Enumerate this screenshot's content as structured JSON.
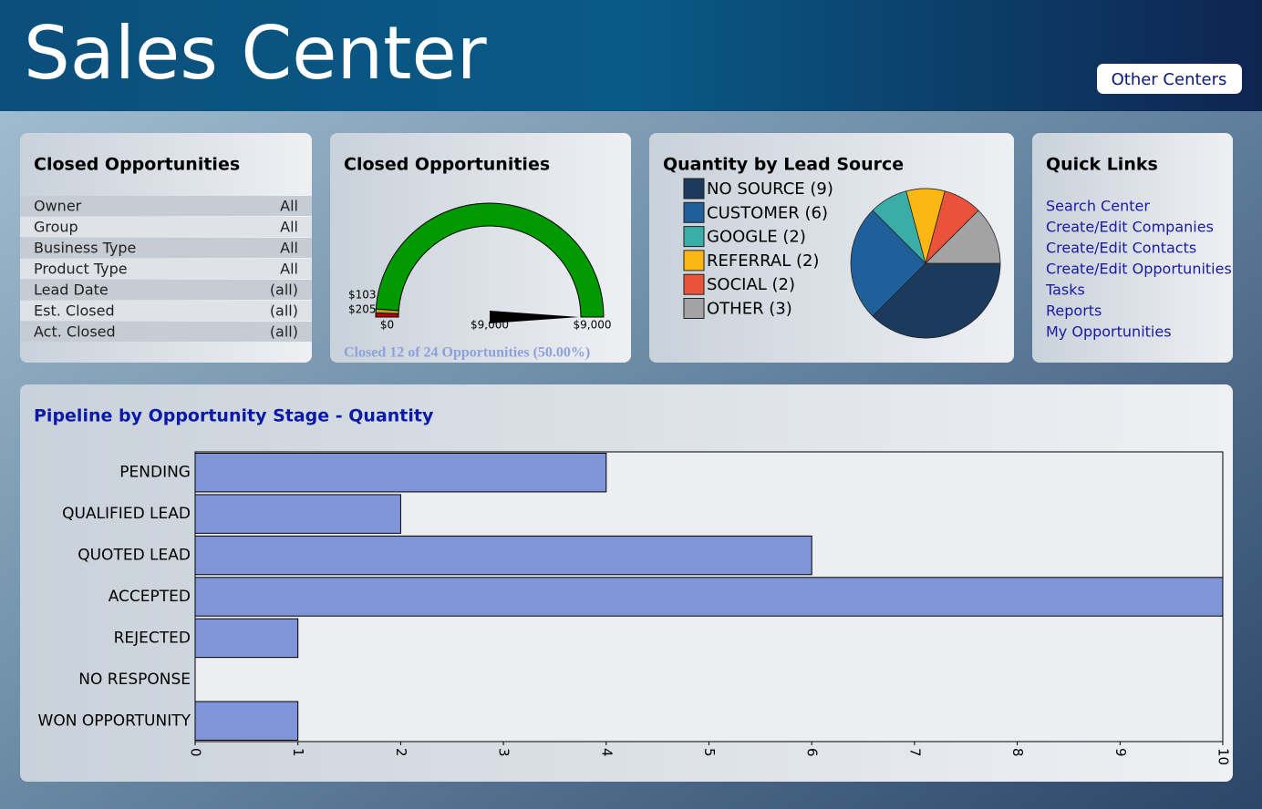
{
  "header": {
    "title": "Sales Center",
    "button": "Other Centers"
  },
  "filters": {
    "title": "Closed Opportunities",
    "rows": [
      [
        "Owner",
        "All"
      ],
      [
        "Group",
        "All"
      ],
      [
        "Business Type",
        "All"
      ],
      [
        "Product Type",
        "All"
      ],
      [
        "Lead Date",
        "(all)"
      ],
      [
        "Est. Closed",
        "(all)"
      ],
      [
        "Act. Closed",
        "(all)"
      ]
    ]
  },
  "quick_links": {
    "title": "Quick Links",
    "links": [
      "Search Center",
      "Create/Edit Companies",
      "Create/Edit Contacts",
      "Create/Edit Opportunities",
      "Tasks",
      "Reports",
      "My Opportunities"
    ]
  },
  "chart_data": [
    {
      "type": "gauge",
      "title": "Closed Opportunities",
      "ylim": [
        0,
        9000
      ],
      "yticks": [
        {
          "value": 0,
          "label": "$0"
        },
        {
          "value": 103,
          "label": "$103"
        },
        {
          "value": 205,
          "label": "$205"
        },
        {
          "value": 9000,
          "label": "$9,000"
        }
      ],
      "band_colors": [
        "#c00000",
        "#b8a020",
        "#009900"
      ],
      "value": 9000,
      "value_label": "$9,000",
      "footer": "Closed 12 of 24 Opportunities (50.00%)"
    },
    {
      "type": "pie",
      "title": "Quantity by Lead Source",
      "categories": [
        "NO SOURCE (9)",
        "CUSTOMER (6)",
        "GOOGLE (2)",
        "REFERRAL (2)",
        "SOCIAL (2)",
        "OTHER (3)"
      ],
      "values": [
        9,
        6,
        2,
        2,
        2,
        3
      ],
      "colors": [
        "#1b3a5c",
        "#1f5f9a",
        "#3aada8",
        "#fbb714",
        "#ea533a",
        "#a3a3a3"
      ]
    },
    {
      "type": "hbar",
      "title": "Pipeline by Opportunity Stage - Quantity",
      "categories": [
        "PENDING",
        "QUALIFIED LEAD",
        "QUOTED LEAD",
        "ACCEPTED",
        "REJECTED",
        "NO RESPONSE",
        "WON OPPORTUNITY"
      ],
      "values": [
        4,
        2,
        6,
        10,
        1,
        0,
        1
      ],
      "color": "#7f95d8",
      "xlim": [
        0,
        10
      ],
      "xticks": [
        0,
        1,
        2,
        3,
        4,
        5,
        6,
        7,
        8,
        9,
        10
      ]
    }
  ]
}
